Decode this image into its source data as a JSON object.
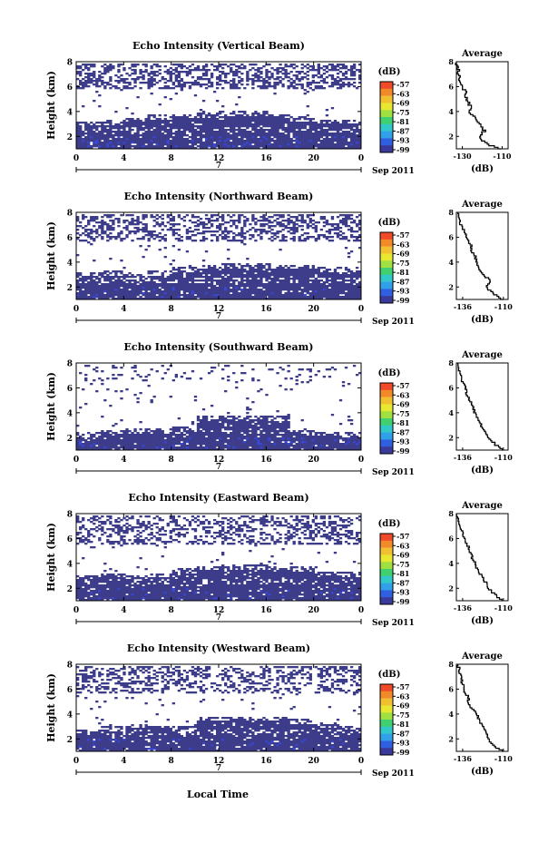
{
  "figure": {
    "xlabel_bottom": "Local Time",
    "colorbar_unit": "(dB)",
    "colorbar_ticks": [
      "-57",
      "-63",
      "-69",
      "-75",
      "-81",
      "-87",
      "-93",
      "-99"
    ],
    "colorbar_colors": [
      "#f04a2a",
      "#f38a2a",
      "#f0c030",
      "#e8e830",
      "#a0e040",
      "#40d070",
      "#30c8c8",
      "#30a0e8",
      "#3060e0",
      "#3a3a9a"
    ],
    "echo_color": "#3c3c8a",
    "echo_highlight": "#3848d8"
  },
  "chart_data": [
    {
      "type": "heatmap",
      "title": "Echo Intensity (Vertical Beam)",
      "ylabel": "Height (km)",
      "xticks": [
        "0",
        "4",
        "8",
        "12",
        "16",
        "20",
        "0"
      ],
      "yticks": [
        "2",
        "4",
        "6",
        "8"
      ],
      "ylim": [
        1.0,
        8.0
      ],
      "date_marker": "7",
      "date_label": "Sep 2011",
      "lower_layer_top_km": [
        3.2,
        3.3,
        3.5,
        3.7,
        3.8,
        3.9,
        4.0,
        4.0,
        3.8,
        3.6,
        3.4,
        3.4
      ],
      "upper_layer_km": [
        5.8,
        7.9
      ],
      "upper_density": 0.45,
      "profile": {
        "title": "Average",
        "xlabel": "(dB)",
        "xticks": [
          "-130",
          "-110"
        ],
        "xlim": [
          -133,
          -107
        ],
        "ylim": [
          1.0,
          8.0
        ],
        "yticks": [
          "2",
          "4",
          "6",
          "8"
        ],
        "height_km": [
          1.0,
          1.5,
          2.0,
          2.5,
          3.0,
          3.5,
          4.0,
          4.5,
          5.0,
          5.5,
          6.0,
          6.5,
          7.0,
          7.5,
          8.0
        ],
        "db": [
          -110,
          -118,
          -122,
          -119,
          -121,
          -123,
          -126,
          -126,
          -128,
          -128,
          -130,
          -131,
          -132,
          -132,
          -133
        ]
      }
    },
    {
      "type": "heatmap",
      "title": "Echo Intensity (Northward Beam)",
      "ylabel": "Height (km)",
      "xticks": [
        "0",
        "4",
        "8",
        "12",
        "16",
        "20",
        "0"
      ],
      "yticks": [
        "2",
        "4",
        "6",
        "8"
      ],
      "ylim": [
        1.0,
        8.0
      ],
      "date_marker": "7",
      "date_label": "Sep 2011",
      "lower_layer_top_km": [
        3.2,
        3.3,
        3.0,
        3.3,
        3.6,
        3.8,
        3.9,
        3.9,
        3.8,
        3.8,
        3.6,
        3.6
      ],
      "upper_layer_km": [
        5.6,
        7.9
      ],
      "upper_density": 0.42,
      "profile": {
        "title": "Average",
        "xlabel": "(dB)",
        "xticks": [
          "-136",
          "-110"
        ],
        "xlim": [
          -140,
          -107
        ],
        "ylim": [
          1.0,
          8.0
        ],
        "yticks": [
          "2",
          "4",
          "6",
          "8"
        ],
        "height_km": [
          1.0,
          1.5,
          2.0,
          2.5,
          3.0,
          3.5,
          4.0,
          4.5,
          5.0,
          5.5,
          6.0,
          6.5,
          7.0,
          7.5,
          8.0
        ],
        "db": [
          -110,
          -116,
          -121,
          -118,
          -122,
          -125,
          -127,
          -128,
          -130,
          -131,
          -133,
          -135,
          -137,
          -138,
          -139
        ]
      }
    },
    {
      "type": "heatmap",
      "title": "Echo Intensity (Southward Beam)",
      "ylabel": "Height (km)",
      "xticks": [
        "0",
        "4",
        "8",
        "12",
        "16",
        "20",
        "0"
      ],
      "yticks": [
        "2",
        "4",
        "6",
        "8"
      ],
      "ylim": [
        1.0,
        8.0
      ],
      "date_marker": "7",
      "date_label": "Sep 2011",
      "lower_layer_top_km": [
        2.4,
        2.6,
        2.7,
        2.8,
        2.9,
        3.8,
        3.8,
        3.8,
        3.7,
        2.6,
        2.5,
        2.4
      ],
      "upper_layer_km": [
        6.5,
        7.9
      ],
      "upper_density": 0.12,
      "profile": {
        "title": "Average",
        "xlabel": "(dB)",
        "xticks": [
          "-136",
          "-110"
        ],
        "xlim": [
          -140,
          -107
        ],
        "ylim": [
          1.0,
          8.0
        ],
        "yticks": [
          "2",
          "4",
          "6",
          "8"
        ],
        "height_km": [
          1.0,
          1.5,
          2.0,
          2.5,
          3.0,
          3.5,
          4.0,
          4.5,
          5.0,
          5.5,
          6.0,
          6.5,
          7.0,
          7.5,
          8.0
        ],
        "db": [
          -110,
          -115,
          -119,
          -121,
          -124,
          -126,
          -128,
          -129,
          -131,
          -133,
          -134,
          -136,
          -137,
          -138,
          -139
        ]
      }
    },
    {
      "type": "heatmap",
      "title": "Echo Intensity (Eastward Beam)",
      "ylabel": "Height (km)",
      "xticks": [
        "0",
        "4",
        "8",
        "12",
        "16",
        "20",
        "0"
      ],
      "yticks": [
        "2",
        "4",
        "6",
        "8"
      ],
      "ylim": [
        1.0,
        8.0
      ],
      "date_marker": "7",
      "date_label": "Sep 2011",
      "lower_layer_top_km": [
        3.1,
        3.2,
        3.0,
        3.2,
        3.6,
        3.8,
        3.9,
        3.9,
        3.8,
        3.7,
        3.4,
        3.3
      ],
      "upper_layer_km": [
        5.5,
        7.9
      ],
      "upper_density": 0.4,
      "profile": {
        "title": "Average",
        "xlabel": "(dB)",
        "xticks": [
          "-136",
          "-110"
        ],
        "xlim": [
          -140,
          -107
        ],
        "ylim": [
          1.0,
          8.0
        ],
        "yticks": [
          "2",
          "4",
          "6",
          "8"
        ],
        "height_km": [
          1.0,
          1.5,
          2.0,
          2.5,
          3.0,
          3.5,
          4.0,
          4.5,
          5.0,
          5.5,
          6.0,
          6.5,
          7.0,
          7.5,
          8.0
        ],
        "db": [
          -110,
          -115,
          -119,
          -121,
          -124,
          -126,
          -128,
          -130,
          -131,
          -133,
          -135,
          -136,
          -138,
          -139,
          -140
        ]
      }
    },
    {
      "type": "heatmap",
      "title": "Echo Intensity (Westward Beam)",
      "ylabel": "Height (km)",
      "xticks": [
        "0",
        "4",
        "8",
        "12",
        "16",
        "20",
        "0"
      ],
      "yticks": [
        "2",
        "4",
        "6",
        "8"
      ],
      "ylim": [
        1.0,
        8.0
      ],
      "date_marker": "7",
      "date_label": "Sep 2011",
      "lower_layer_top_km": [
        2.8,
        3.0,
        3.2,
        3.1,
        3.0,
        3.8,
        3.8,
        3.8,
        3.8,
        3.6,
        3.3,
        3.1
      ],
      "upper_layer_km": [
        5.6,
        7.9
      ],
      "upper_density": 0.38,
      "profile": {
        "title": "Average",
        "xlabel": "(dB)",
        "xticks": [
          "-136",
          "-110"
        ],
        "xlim": [
          -140,
          -107
        ],
        "ylim": [
          1.0,
          8.0
        ],
        "yticks": [
          "2",
          "4",
          "6",
          "8"
        ],
        "height_km": [
          1.0,
          1.5,
          2.0,
          2.5,
          3.0,
          3.5,
          4.0,
          4.5,
          5.0,
          5.5,
          6.0,
          6.5,
          7.0,
          7.5,
          8.0
        ],
        "db": [
          -110,
          -116,
          -119,
          -121,
          -123,
          -125,
          -127,
          -130,
          -132,
          -133,
          -135,
          -136,
          -137,
          -138,
          -139
        ]
      }
    }
  ]
}
